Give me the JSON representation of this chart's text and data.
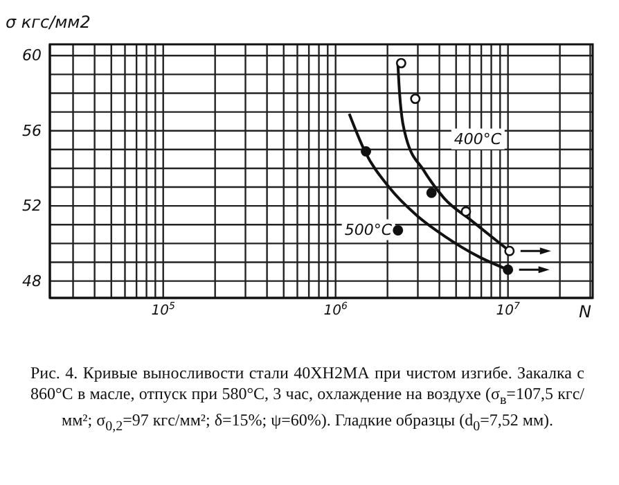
{
  "chart_data": {
    "type": "line",
    "ylabel": "σ кгс/мм2",
    "xlabel": "N",
    "log": "x",
    "grid": true,
    "legend": false,
    "xlim": [
      22000,
      31000000
    ],
    "ylim": [
      47.1,
      60.6
    ],
    "xticks": [
      {
        "value": 30000,
        "label": null
      },
      {
        "value": 40000,
        "label": null
      },
      {
        "value": 50000,
        "label": null
      },
      {
        "value": 60000,
        "label": null
      },
      {
        "value": 70000,
        "label": null
      },
      {
        "value": 80000,
        "label": null
      },
      {
        "value": 90000,
        "label": null
      },
      {
        "value": 100000,
        "label": "10$^{5}$"
      },
      {
        "value": 200000,
        "label": null
      },
      {
        "value": 300000,
        "label": null
      },
      {
        "value": 400000,
        "label": null
      },
      {
        "value": 500000,
        "label": null
      },
      {
        "value": 600000,
        "label": null
      },
      {
        "value": 700000,
        "label": null
      },
      {
        "value": 800000,
        "label": null
      },
      {
        "value": 900000,
        "label": null
      },
      {
        "value": 1000000,
        "label": "10$^{6}$"
      },
      {
        "value": 2000000,
        "label": null
      },
      {
        "value": 3000000,
        "label": null
      },
      {
        "value": 4000000,
        "label": null
      },
      {
        "value": 5000000,
        "label": null
      },
      {
        "value": 6000000,
        "label": null
      },
      {
        "value": 7000000,
        "label": null
      },
      {
        "value": 8000000,
        "label": null
      },
      {
        "value": 9000000,
        "label": null
      },
      {
        "value": 10000000,
        "label": "10$^{7}$"
      },
      {
        "value": 20000000,
        "label": null
      },
      {
        "value": 30000000,
        "label": null
      }
    ],
    "yticks": [
      48,
      {
        "value": 49,
        "label": null
      },
      {
        "value": 50,
        "label": null
      },
      {
        "value": 51,
        "label": null
      },
      52,
      {
        "value": 53,
        "label": null
      },
      {
        "value": 54,
        "label": null
      },
      {
        "value": 55,
        "label": null
      },
      56,
      {
        "value": 57,
        "label": null
      },
      {
        "value": 58,
        "label": null
      },
      {
        "value": 59,
        "label": null
      },
      60
    ],
    "series": [
      {
        "name": "400°C",
        "color": "#111111",
        "marker": "none",
        "x": [
          2300000,
          2350000,
          2570000,
          3240000,
          4270000,
          6170000,
          10200000
        ],
        "values": [
          59.5,
          58.0,
          55.6,
          53.9,
          52.4,
          51.2,
          49.6
        ]
      },
      {
        "name": "500°C",
        "color": "#111111",
        "marker": "none",
        "x": [
          1200000,
          1480000,
          2040000,
          2950000,
          4270000,
          6760000,
          10000000
        ],
        "values": [
          56.9,
          54.9,
          53.0,
          51.5,
          50.4,
          49.3,
          48.6
        ]
      },
      {
        "type": "scatter",
        "color": "#ffffff",
        "marker": "circle",
        "x": [
          2400000,
          2900000,
          5700000,
          10200000
        ],
        "values": [
          59.6,
          57.7,
          51.7,
          49.6
        ]
      },
      {
        "type": "scatter",
        "color": "#111111",
        "marker": "circle",
        "x": [
          1500000,
          2300000,
          3600000,
          10000000
        ],
        "values": [
          54.9,
          50.7,
          52.7,
          48.6
        ]
      }
    ],
    "annotations": [
      "Рис. 4. Кривые выносливости стали 40ХН2МА при чистом изгибе. Закалка с 860°С в масле, отпуск при 580°С, 3 час, охлаждение на воздухе (σ$_{в}$=107,5 кгс/мм²; σ$_{0,2}$=97 кгс/мм²; δ=15%; ψ=60%). Гладкие образцы (d$_{0}$=7,52 мм)."
    ]
  }
}
